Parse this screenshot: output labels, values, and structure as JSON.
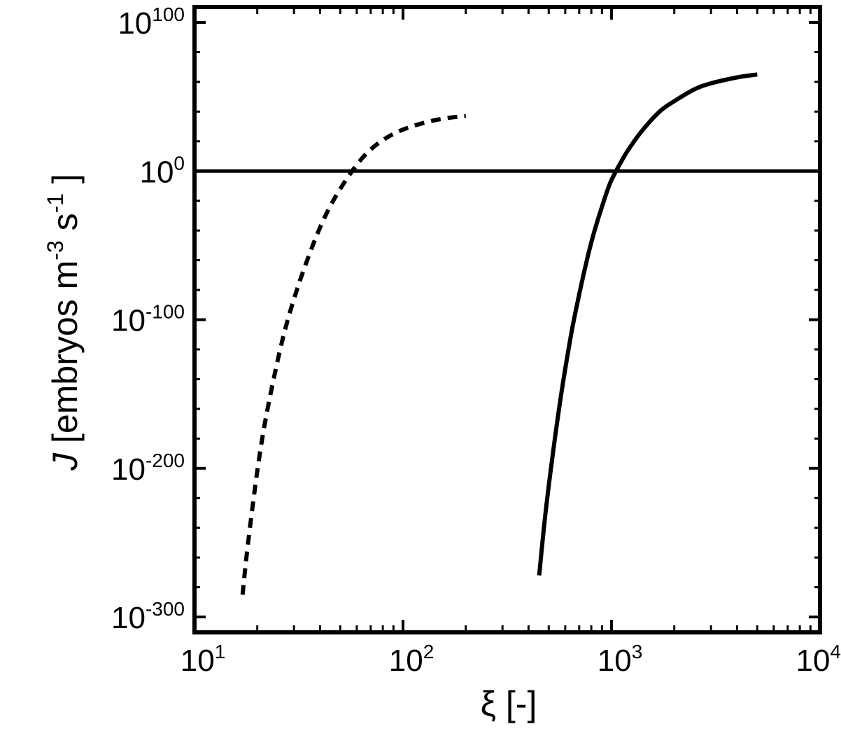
{
  "colors": {
    "ink": "#000000",
    "background": "#ffffff"
  },
  "chart_data": {
    "type": "line",
    "x_scale": "log",
    "y_scale": "log",
    "xlim": [
      10,
      10000
    ],
    "ylim": [
      1e-300,
      1e+100
    ],
    "xlabel": "ξ [-]",
    "ylabel": {
      "var": "J",
      "text": " [embryos m",
      "exp1": "-3",
      "mid": " s",
      "exp2": "-1",
      "close": " ]"
    },
    "x_ticks": [
      {
        "value": 10,
        "base": "10",
        "exp": "1"
      },
      {
        "value": 100,
        "base": "10",
        "exp": "2"
      },
      {
        "value": 1000,
        "base": "10",
        "exp": "3"
      },
      {
        "value": 10000,
        "base": "10",
        "exp": "4"
      }
    ],
    "y_ticks": [
      {
        "log10": 100,
        "base": "10",
        "exp": "100"
      },
      {
        "log10": 0,
        "base": "10",
        "exp": "0"
      },
      {
        "log10": -100,
        "base": "10",
        "exp": "-100"
      },
      {
        "log10": -200,
        "base": "10",
        "exp": "-200"
      },
      {
        "log10": -300,
        "base": "10",
        "exp": "-300"
      }
    ],
    "reference_line": {
      "log10_y": 0,
      "style": "solid"
    },
    "series": [
      {
        "style": "dashed",
        "x": [
          17,
          18,
          20,
          22,
          25,
          28,
          32,
          36,
          40,
          45,
          50,
          57,
          65,
          75,
          90,
          110,
          140,
          170,
          200
        ],
        "log10_y": [
          -285,
          -252,
          -202,
          -166,
          -128,
          -100,
          -74,
          -54,
          -38,
          -23,
          -12,
          0,
          10,
          18,
          25,
          30,
          34,
          36,
          37
        ]
      },
      {
        "style": "solid",
        "x": [
          450,
          480,
          520,
          560,
          600,
          650,
          700,
          750,
          800,
          850,
          900,
          950,
          1000,
          1100,
          1200,
          1400,
          1700,
          2000,
          2500,
          3000,
          4000,
          5000
        ],
        "log10_y": [
          -272,
          -233,
          -193,
          -160,
          -133,
          -105,
          -83,
          -64,
          -48,
          -35,
          -24,
          -14,
          -6,
          5,
          14,
          27,
          40,
          47,
          55,
          59,
          63,
          65
        ]
      }
    ]
  }
}
